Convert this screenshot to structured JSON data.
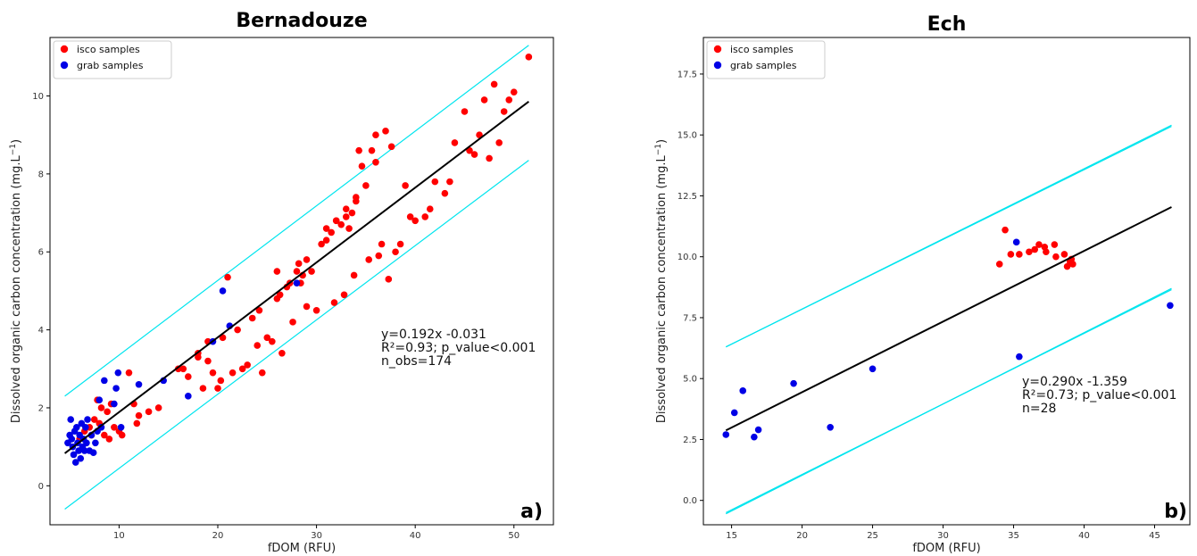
{
  "colors": {
    "isco": "#ff0000",
    "grab": "#0000e6",
    "fit": "#000000",
    "bounds": "#00e5ee"
  },
  "chart_data": [
    {
      "type": "scatter",
      "title": "Bernadouze",
      "xlabel": "fDOM (RFU)",
      "ylabel": "Dissolved organic carbon concentration (mg.L",
      "ylabel_sup": "−1",
      "ylabel_end": ")",
      "xlim": [
        3,
        54
      ],
      "ylim": [
        -1.0,
        11.5
      ],
      "xticks": [
        10,
        20,
        30,
        40,
        50
      ],
      "yticks": [
        0,
        2,
        4,
        6,
        8,
        10
      ],
      "legend": {
        "position": "top-left",
        "entries": [
          "isco samples",
          "grab samples"
        ]
      },
      "annotation": [
        "y=0.192x -0.031",
        "R²=0.93; p_value<0.001",
        "n_obs=174"
      ],
      "panel_label": "a)",
      "fit": {
        "slope": 0.192,
        "intercept": -0.031,
        "x_range": [
          4.5,
          51.5
        ]
      },
      "bounds": [
        {
          "x": [
            4.5,
            51.5
          ],
          "y": [
            2.3,
            11.3
          ]
        },
        {
          "x": [
            4.5,
            51.5
          ],
          "y": [
            -0.6,
            8.35
          ]
        }
      ],
      "series": [
        {
          "name": "isco samples",
          "color_key": "isco",
          "points": [
            [
              6.0,
              1.2
            ],
            [
              6.5,
              1.4
            ],
            [
              7.0,
              1.5
            ],
            [
              7.2,
              1.3
            ],
            [
              7.5,
              1.7
            ],
            [
              7.8,
              2.2
            ],
            [
              8.0,
              1.6
            ],
            [
              8.2,
              2.0
            ],
            [
              8.5,
              1.3
            ],
            [
              8.8,
              1.9
            ],
            [
              9.0,
              1.2
            ],
            [
              9.2,
              2.1
            ],
            [
              9.5,
              1.5
            ],
            [
              10.0,
              1.4
            ],
            [
              10.3,
              1.3
            ],
            [
              11.0,
              2.9
            ],
            [
              11.5,
              2.1
            ],
            [
              11.8,
              1.6
            ],
            [
              12.0,
              1.8
            ],
            [
              13.0,
              1.9
            ],
            [
              14.0,
              2.0
            ],
            [
              16.0,
              3.0
            ],
            [
              17.0,
              2.8
            ],
            [
              18.0,
              3.4
            ],
            [
              18.5,
              2.5
            ],
            [
              19.0,
              3.2
            ],
            [
              19.5,
              2.9
            ],
            [
              20.0,
              2.5
            ],
            [
              20.3,
              2.7
            ],
            [
              20.5,
              3.8
            ],
            [
              21.0,
              5.35
            ],
            [
              21.5,
              2.9
            ],
            [
              22.0,
              4.0
            ],
            [
              22.5,
              3.0
            ],
            [
              23.0,
              3.1
            ],
            [
              23.5,
              4.3
            ],
            [
              24.0,
              3.6
            ],
            [
              24.2,
              4.5
            ],
            [
              24.5,
              2.9
            ],
            [
              25.0,
              3.8
            ],
            [
              25.5,
              3.7
            ],
            [
              26.0,
              5.5
            ],
            [
              26.3,
              4.9
            ],
            [
              26.5,
              3.4
            ],
            [
              27.0,
              5.1
            ],
            [
              27.3,
              5.2
            ],
            [
              27.6,
              4.2
            ],
            [
              28.0,
              5.5
            ],
            [
              28.2,
              5.7
            ],
            [
              28.4,
              5.2
            ],
            [
              28.6,
              5.4
            ],
            [
              29.0,
              4.6
            ],
            [
              29.5,
              5.5
            ],
            [
              30.0,
              4.5
            ],
            [
              30.5,
              6.2
            ],
            [
              31.0,
              6.6
            ],
            [
              31.5,
              6.5
            ],
            [
              31.8,
              4.7
            ],
            [
              32.0,
              6.8
            ],
            [
              32.5,
              6.7
            ],
            [
              32.8,
              4.9
            ],
            [
              33.0,
              6.9
            ],
            [
              33.3,
              6.6
            ],
            [
              33.6,
              7.0
            ],
            [
              33.8,
              5.4
            ],
            [
              34.0,
              7.4
            ],
            [
              34.3,
              8.6
            ],
            [
              34.6,
              8.2
            ],
            [
              35.0,
              7.7
            ],
            [
              35.3,
              5.8
            ],
            [
              35.6,
              8.6
            ],
            [
              36.0,
              9.0
            ],
            [
              36.3,
              5.9
            ],
            [
              36.6,
              6.2
            ],
            [
              37.0,
              9.1
            ],
            [
              37.3,
              5.3
            ],
            [
              37.6,
              8.7
            ],
            [
              38.0,
              6.0
            ],
            [
              38.5,
              6.2
            ],
            [
              39.0,
              7.7
            ],
            [
              39.5,
              6.9
            ],
            [
              40.0,
              6.8
            ],
            [
              41.0,
              6.9
            ],
            [
              41.5,
              7.1
            ],
            [
              42.0,
              7.8
            ],
            [
              43.0,
              7.5
            ],
            [
              43.5,
              7.8
            ],
            [
              44.0,
              8.8
            ],
            [
              45.0,
              9.6
            ],
            [
              45.5,
              8.6
            ],
            [
              46.0,
              8.5
            ],
            [
              46.5,
              9.0
            ],
            [
              47.0,
              9.9
            ],
            [
              47.5,
              8.4
            ],
            [
              48.0,
              10.3
            ],
            [
              48.5,
              8.8
            ],
            [
              49.0,
              9.6
            ],
            [
              49.5,
              9.9
            ],
            [
              50.0,
              10.1
            ],
            [
              51.5,
              11.0
            ],
            [
              16.5,
              3.0
            ],
            [
              18.0,
              3.3
            ],
            [
              19.0,
              3.7
            ],
            [
              26.0,
              4.8
            ],
            [
              29.0,
              5.8
            ],
            [
              31.0,
              6.3
            ],
            [
              32.0,
              6.8
            ],
            [
              33.0,
              7.1
            ],
            [
              34.0,
              7.3
            ],
            [
              36.0,
              8.3
            ]
          ]
        },
        {
          "name": "grab samples",
          "color_key": "grab",
          "points": [
            [
              4.8,
              1.1
            ],
            [
              5.0,
              1.3
            ],
            [
              5.1,
              1.7
            ],
            [
              5.2,
              1.2
            ],
            [
              5.3,
              1.0
            ],
            [
              5.4,
              0.8
            ],
            [
              5.5,
              1.4
            ],
            [
              5.6,
              0.6
            ],
            [
              5.7,
              1.5
            ],
            [
              5.8,
              1.1
            ],
            [
              5.9,
              0.9
            ],
            [
              6.0,
              1.3
            ],
            [
              6.1,
              0.7
            ],
            [
              6.2,
              1.6
            ],
            [
              6.3,
              1.0
            ],
            [
              6.4,
              1.2
            ],
            [
              6.5,
              0.9
            ],
            [
              6.6,
              1.5
            ],
            [
              6.7,
              1.1
            ],
            [
              6.8,
              1.7
            ],
            [
              7.0,
              0.9
            ],
            [
              7.2,
              1.3
            ],
            [
              7.4,
              0.85
            ],
            [
              7.6,
              1.1
            ],
            [
              7.8,
              1.4
            ],
            [
              8.0,
              2.2
            ],
            [
              8.2,
              1.5
            ],
            [
              8.5,
              2.7
            ],
            [
              9.5,
              2.1
            ],
            [
              9.7,
              2.5
            ],
            [
              9.9,
              2.9
            ],
            [
              10.2,
              1.5
            ],
            [
              12.0,
              2.6
            ],
            [
              14.5,
              2.7
            ],
            [
              17.0,
              2.3
            ],
            [
              19.5,
              3.7
            ],
            [
              20.5,
              5.0
            ],
            [
              21.2,
              4.1
            ],
            [
              28.0,
              5.2
            ]
          ]
        }
      ]
    },
    {
      "type": "scatter",
      "title": "Ech",
      "xlabel": "fDOM (RFU)",
      "ylabel": "Dissolved organic carbon concentration (mg.L",
      "ylabel_sup": "−1",
      "ylabel_end": ")",
      "xlim": [
        13,
        47.5
      ],
      "ylim": [
        -1.0,
        19.0
      ],
      "xticks": [
        15,
        20,
        25,
        30,
        35,
        40,
        45
      ],
      "yticks": [
        0.0,
        2.5,
        5.0,
        7.5,
        10.0,
        12.5,
        15.0,
        17.5
      ],
      "legend": {
        "position": "top-left",
        "entries": [
          "isco samples",
          "grab samples"
        ]
      },
      "annotation": [
        "y=0.290x -1.359",
        "R²=0.73; p_value<0.001",
        "n=28"
      ],
      "panel_label": "b)",
      "fit": {
        "slope": 0.29,
        "intercept": -1.359,
        "x_range": [
          14.6,
          46.2
        ]
      },
      "bounds": [
        {
          "x": [
            14.6,
            46.2
          ],
          "y": [
            6.3,
            15.4
          ]
        },
        {
          "x": [
            14.6,
            46.2
          ],
          "y": [
            6.3,
            15.35
          ]
        },
        {
          "x": [
            14.6,
            46.2
          ],
          "y": [
            -0.55,
            8.7
          ]
        },
        {
          "x": [
            14.6,
            46.2
          ],
          "y": [
            -0.5,
            8.65
          ]
        }
      ],
      "series": [
        {
          "name": "isco samples",
          "color_key": "isco",
          "points": [
            [
              34.0,
              9.7
            ],
            [
              34.4,
              11.1
            ],
            [
              34.8,
              10.1
            ],
            [
              35.4,
              10.1
            ],
            [
              36.1,
              10.2
            ],
            [
              36.5,
              10.3
            ],
            [
              36.8,
              10.5
            ],
            [
              37.2,
              10.4
            ],
            [
              37.3,
              10.2
            ],
            [
              37.9,
              10.5
            ],
            [
              38.0,
              10.0
            ],
            [
              38.6,
              10.1
            ],
            [
              38.8,
              9.6
            ],
            [
              39.0,
              9.8
            ],
            [
              39.1,
              9.9
            ],
            [
              39.2,
              9.7
            ]
          ]
        },
        {
          "name": "grab samples",
          "color_key": "grab",
          "points": [
            [
              14.6,
              2.7
            ],
            [
              15.2,
              3.6
            ],
            [
              15.8,
              4.5
            ],
            [
              16.6,
              2.6
            ],
            [
              16.9,
              2.9
            ],
            [
              19.4,
              4.8
            ],
            [
              22.0,
              3.0
            ],
            [
              25.0,
              5.4
            ],
            [
              35.2,
              10.6
            ],
            [
              35.4,
              5.9
            ],
            [
              46.1,
              8.0
            ]
          ]
        }
      ]
    }
  ]
}
